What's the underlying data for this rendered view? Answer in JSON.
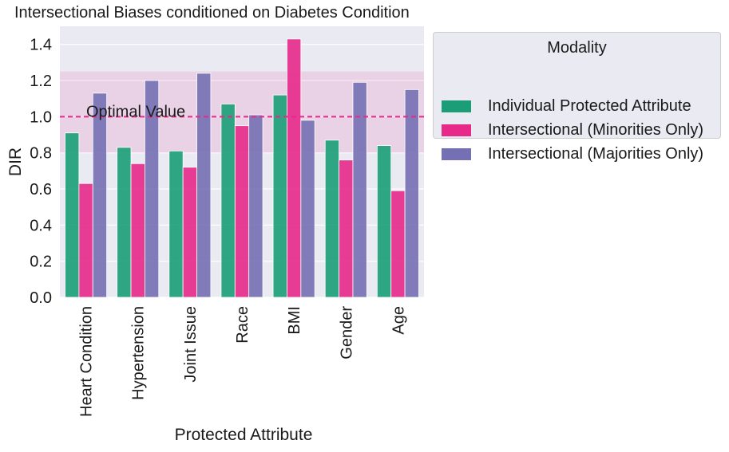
{
  "chart_data": {
    "type": "bar",
    "title": "Intersectional Biases conditioned on Diabetes Condition",
    "xlabel": "Protected Attribute",
    "ylabel": "DIR",
    "ylim": [
      0,
      1.5
    ],
    "yticks": [
      "0.0",
      "0.2",
      "0.4",
      "0.6",
      "0.8",
      "1.0",
      "1.2",
      "1.4"
    ],
    "categories": [
      "Heart Condition",
      "Hypertension",
      "Joint Issue",
      "Race",
      "BMI",
      "Gender",
      "Age"
    ],
    "series": [
      {
        "name": "Individual Protected Attribute",
        "color": "#1b9e77",
        "values": [
          0.91,
          0.83,
          0.81,
          1.07,
          1.12,
          0.87,
          0.84
        ]
      },
      {
        "name": "Intersectional (Minorities Only)",
        "color": "#e7298a",
        "values": [
          0.63,
          0.74,
          0.72,
          0.95,
          1.43,
          0.76,
          0.59
        ]
      },
      {
        "name": "Intersectional (Majorities Only)",
        "color": "#7570b3",
        "values": [
          1.13,
          1.2,
          1.24,
          1.01,
          0.98,
          1.19,
          1.15
        ]
      }
    ],
    "reference_line": {
      "value": 1.0,
      "label": "Optimal Value",
      "color": "#e7298a"
    },
    "shaded_band": {
      "range": [
        0.8,
        1.25
      ],
      "color": "#e7298a"
    },
    "grid": true,
    "legend": {
      "title": "Modality",
      "placement": "outside-right"
    }
  }
}
